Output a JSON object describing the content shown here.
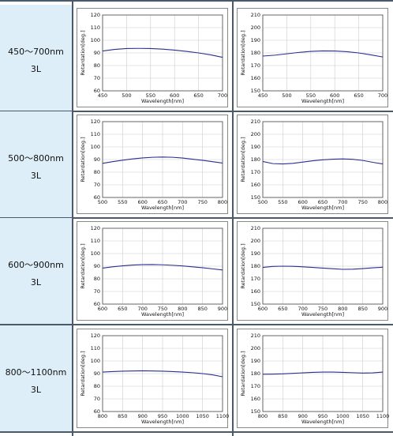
{
  "rows": [
    {
      "label": "450～700nm",
      "sublabel": "3L",
      "charts": [
        {
          "type": "line",
          "xlabel": "Wavelength[nm]",
          "ylabel": "Retardation[deg.]",
          "xlim": [
            450,
            700
          ],
          "ylim": [
            60,
            120
          ],
          "xticks": [
            450,
            500,
            550,
            600,
            650,
            700
          ],
          "yticks": [
            60,
            70,
            80,
            90,
            100,
            110,
            120
          ],
          "series": [
            {
              "x": [
                450,
                475,
                500,
                525,
                550,
                575,
                600,
                625,
                650,
                675,
                700
              ],
              "values": [
                91.5,
                92.8,
                93.5,
                93.6,
                93.5,
                93.0,
                92.2,
                91.2,
                90.0,
                88.5,
                86.5
              ]
            }
          ]
        },
        {
          "type": "line",
          "xlabel": "Wavelength[nm]",
          "ylabel": "Retardation[deg.]",
          "xlim": [
            450,
            700
          ],
          "ylim": [
            150,
            210
          ],
          "xticks": [
            450,
            500,
            550,
            600,
            650,
            700
          ],
          "yticks": [
            150,
            160,
            170,
            180,
            190,
            200,
            210
          ],
          "series": [
            {
              "x": [
                450,
                475,
                500,
                525,
                550,
                575,
                600,
                625,
                650,
                675,
                700
              ],
              "values": [
                177.5,
                178.2,
                179.3,
                180.4,
                181.2,
                181.6,
                181.5,
                181.0,
                180.0,
                178.5,
                176.8
              ]
            }
          ]
        }
      ]
    },
    {
      "label": "500～800nm",
      "sublabel": "3L",
      "charts": [
        {
          "type": "line",
          "xlabel": "Wavelength[nm]",
          "ylabel": "Retardation[deg.]",
          "xlim": [
            500,
            800
          ],
          "ylim": [
            60,
            120
          ],
          "xticks": [
            500,
            550,
            600,
            650,
            700,
            750,
            800
          ],
          "yticks": [
            60,
            70,
            80,
            90,
            100,
            110,
            120
          ],
          "series": [
            {
              "x": [
                500,
                525,
                550,
                575,
                600,
                625,
                650,
                675,
                700,
                725,
                750,
                775,
                800
              ],
              "values": [
                87.0,
                88.3,
                89.5,
                90.5,
                91.3,
                91.8,
                92.0,
                91.8,
                91.2,
                90.3,
                89.4,
                88.3,
                87.2
              ]
            }
          ]
        },
        {
          "type": "line",
          "xlabel": "Wavelength[nm]",
          "ylabel": "Retardation[deg.]",
          "xlim": [
            500,
            800
          ],
          "ylim": [
            150,
            210
          ],
          "xticks": [
            500,
            550,
            600,
            650,
            700,
            750,
            800
          ],
          "yticks": [
            150,
            160,
            170,
            180,
            190,
            200,
            210
          ],
          "series": [
            {
              "x": [
                500,
                525,
                550,
                575,
                600,
                625,
                650,
                675,
                700,
                725,
                750,
                775,
                800
              ],
              "values": [
                178.5,
                176.8,
                176.5,
                177.0,
                178.0,
                179.0,
                179.8,
                180.3,
                180.5,
                180.2,
                179.3,
                177.8,
                176.5
              ]
            }
          ]
        }
      ]
    },
    {
      "label": "600～900nm",
      "sublabel": "3L",
      "charts": [
        {
          "type": "line",
          "xlabel": "Wavelength[nm]",
          "ylabel": "Retardation[deg.]",
          "xlim": [
            600,
            900
          ],
          "ylim": [
            60,
            120
          ],
          "xticks": [
            600,
            650,
            700,
            750,
            800,
            850,
            900
          ],
          "yticks": [
            60,
            70,
            80,
            90,
            100,
            110,
            120
          ],
          "series": [
            {
              "x": [
                600,
                625,
                650,
                675,
                700,
                725,
                750,
                775,
                800,
                825,
                850,
                875,
                900
              ],
              "values": [
                88.5,
                89.5,
                90.3,
                90.9,
                91.2,
                91.3,
                91.1,
                90.7,
                90.2,
                89.5,
                88.8,
                87.9,
                87.0
              ]
            }
          ]
        },
        {
          "type": "line",
          "xlabel": "Wavelength[nm]",
          "ylabel": "Retardation[deg.]",
          "xlim": [
            600,
            900
          ],
          "ylim": [
            150,
            210
          ],
          "xticks": [
            600,
            650,
            700,
            750,
            800,
            850,
            900
          ],
          "yticks": [
            150,
            160,
            170,
            180,
            190,
            200,
            210
          ],
          "series": [
            {
              "x": [
                600,
                625,
                650,
                675,
                700,
                725,
                750,
                775,
                800,
                825,
                850,
                875,
                900
              ],
              "values": [
                179.0,
                179.8,
                180.0,
                179.9,
                179.5,
                179.0,
                178.5,
                178.0,
                177.5,
                177.6,
                178.1,
                178.7,
                179.2
              ]
            }
          ]
        }
      ]
    },
    {
      "label": "800～1100nm",
      "sublabel": "3L",
      "charts": [
        {
          "type": "line",
          "xlabel": "Wavelength[nm]",
          "ylabel": "Retardation[deg.]",
          "xlim": [
            800,
            1100
          ],
          "ylim": [
            60,
            120
          ],
          "xticks": [
            800,
            850,
            900,
            950,
            1000,
            1050,
            1100
          ],
          "yticks": [
            60,
            70,
            80,
            90,
            100,
            110,
            120
          ],
          "series": [
            {
              "x": [
                800,
                825,
                850,
                875,
                900,
                925,
                950,
                975,
                1000,
                1025,
                1050,
                1075,
                1100
              ],
              "values": [
                91.2,
                91.6,
                91.9,
                92.1,
                92.2,
                92.1,
                91.9,
                91.6,
                91.2,
                90.7,
                90.0,
                89.0,
                87.5
              ]
            }
          ]
        },
        {
          "type": "line",
          "xlabel": "Wavelength[nm]",
          "ylabel": "Retardation[deg.]",
          "xlim": [
            800,
            1100
          ],
          "ylim": [
            150,
            210
          ],
          "xticks": [
            800,
            850,
            900,
            950,
            1000,
            1050,
            1100
          ],
          "yticks": [
            150,
            160,
            170,
            180,
            190,
            200,
            210
          ],
          "series": [
            {
              "x": [
                800,
                825,
                850,
                875,
                900,
                925,
                950,
                975,
                1000,
                1025,
                1050,
                1075,
                1100
              ],
              "values": [
                179.5,
                179.6,
                179.8,
                180.2,
                180.6,
                181.0,
                181.2,
                181.2,
                181.0,
                180.7,
                180.4,
                180.6,
                181.2
              ]
            }
          ]
        }
      ]
    }
  ],
  "colors": {
    "line": "#2a2f8f",
    "label_bg": "#ddeef8",
    "grid": "#cccccc"
  }
}
